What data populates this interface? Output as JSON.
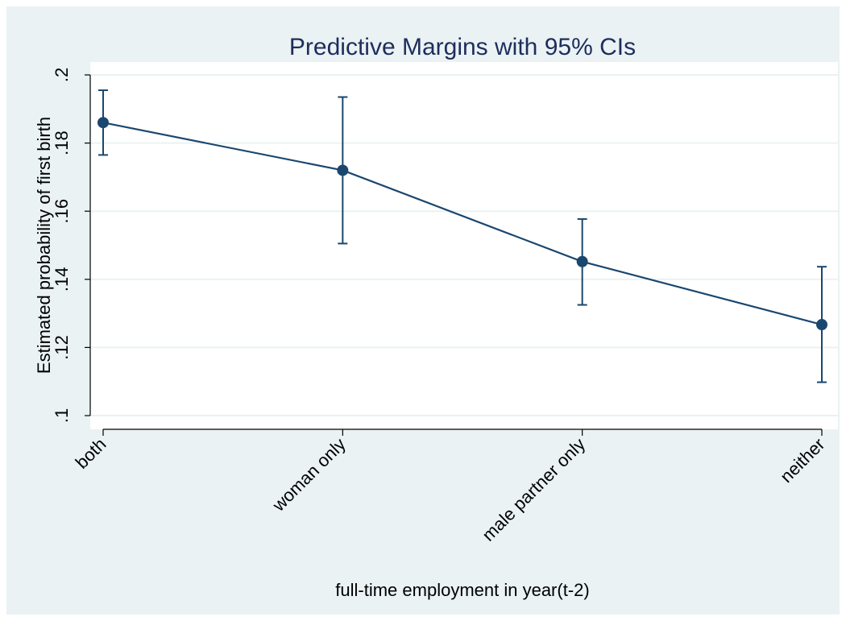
{
  "chart_data": {
    "type": "line",
    "title": "Predictive Margins with 95% CIs",
    "xlabel": "full-time employment in year(t-2)",
    "ylabel": "Estimated probability of first birth",
    "categories": [
      "both",
      "woman only",
      "male partner only",
      "neither"
    ],
    "series": [
      {
        "values": [
          0.186,
          0.172,
          0.1452,
          0.1267
        ],
        "ci_low": [
          0.1765,
          0.1505,
          0.1325,
          0.1098
        ],
        "ci_high": [
          0.1955,
          0.1935,
          0.1577,
          0.1437
        ]
      }
    ],
    "ylim": [
      0.1,
      0.2
    ],
    "yticks": [
      0.1,
      0.12,
      0.14,
      0.16,
      0.18,
      0.2
    ],
    "ytick_labels": [
      ".1",
      ".12",
      ".14",
      ".16",
      ".18",
      ".2"
    ],
    "grid": true,
    "legend": "none",
    "colors": {
      "outer_background": "#eaf2f3",
      "plot_background": "#ffffff",
      "grid": "#eaf2f3",
      "series": "#1a476f",
      "title": "#1e2d5e",
      "text": "#000000"
    }
  }
}
